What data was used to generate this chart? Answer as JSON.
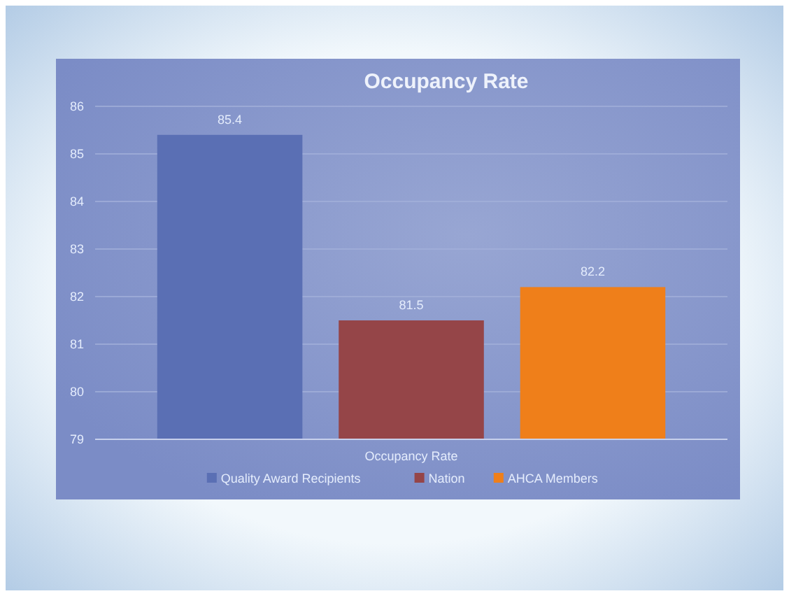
{
  "chart_data": {
    "type": "bar",
    "title": "Occupancy Rate",
    "categories": [
      "Occupancy Rate"
    ],
    "series": [
      {
        "name": "Quality Award Recipients",
        "color": "#5a6fb4",
        "values": [
          85.4
        ]
      },
      {
        "name": "Nation",
        "color": "#954548",
        "values": [
          81.5
        ]
      },
      {
        "name": "AHCA Members",
        "color": "#ef7f1a",
        "values": [
          82.2
        ]
      }
    ],
    "ylim": [
      79,
      86
    ],
    "yticks": [
      79,
      80,
      81,
      82,
      83,
      84,
      85,
      86
    ],
    "grid": "y",
    "data_labels": true,
    "legend": "bottom"
  }
}
